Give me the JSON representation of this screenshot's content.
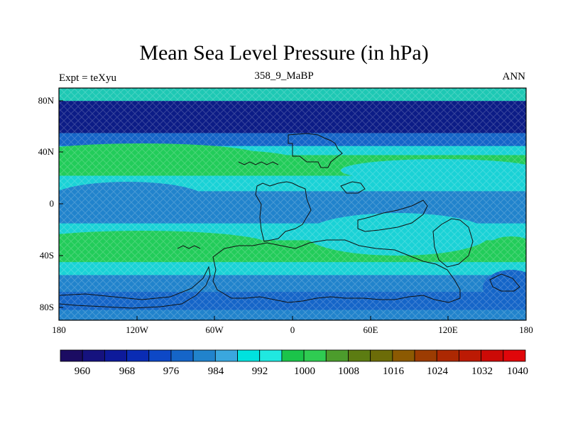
{
  "title": "Mean Sea Level Pressure (in hPa)",
  "subtitle_left": "Expt = teXyu",
  "subtitle_center": "358_9_MaBP",
  "subtitle_right": "ANN",
  "axes": {
    "lon_labels": [
      "180",
      "120W",
      "60W",
      "0",
      "60E",
      "120E",
      "180"
    ],
    "lat_labels": [
      "80N",
      "40N",
      "0",
      "40S",
      "80S"
    ]
  },
  "colorbar": {
    "colors": [
      "#1b0c62",
      "#15127e",
      "#0d1a9a",
      "#0a2cb4",
      "#0d48c6",
      "#1565c8",
      "#2183cc",
      "#3aa7de",
      "#00e2de",
      "#20e8e0",
      "#1bc44a",
      "#2fcc52",
      "#4c9c2c",
      "#5c7c12",
      "#6c6c08",
      "#8c5a02",
      "#9c3c02",
      "#ac2802",
      "#bc1a04",
      "#cc0a06",
      "#e0060a"
    ],
    "labels": [
      "960",
      "968",
      "976",
      "984",
      "992",
      "1000",
      "1008",
      "1016",
      "1024",
      "1032",
      "1040"
    ]
  },
  "map_fields": {
    "background": "#1bd6d6",
    "bands": [
      {
        "lat_range": [
          90,
          80
        ],
        "color": "#1ec8b4"
      },
      {
        "lat_range": [
          80,
          55
        ],
        "color": "#0c1c86"
      },
      {
        "lat_range": [
          55,
          45
        ],
        "color": "#1565c8"
      },
      {
        "lat_range": [
          45,
          38
        ],
        "color": "#1ad2d6"
      },
      {
        "lat_range": [
          38,
          22
        ],
        "color": "#22cc5a"
      },
      {
        "lat_range": [
          22,
          10
        ],
        "color": "#1ad2d6"
      },
      {
        "lat_range": [
          10,
          -15
        ],
        "color": "#2183cc"
      },
      {
        "lat_range": [
          -15,
          -28
        ],
        "color": "#1ad2d6"
      },
      {
        "lat_range": [
          -28,
          -45
        ],
        "color": "#22cc5a"
      },
      {
        "lat_range": [
          -45,
          -55
        ],
        "color": "#1ad2d6"
      },
      {
        "lat_range": [
          -55,
          -68
        ],
        "color": "#2183cc"
      },
      {
        "lat_range": [
          -68,
          -82
        ],
        "color": "#1565c8"
      },
      {
        "lat_range": [
          -82,
          -90
        ],
        "color": "#2183cc"
      }
    ]
  }
}
